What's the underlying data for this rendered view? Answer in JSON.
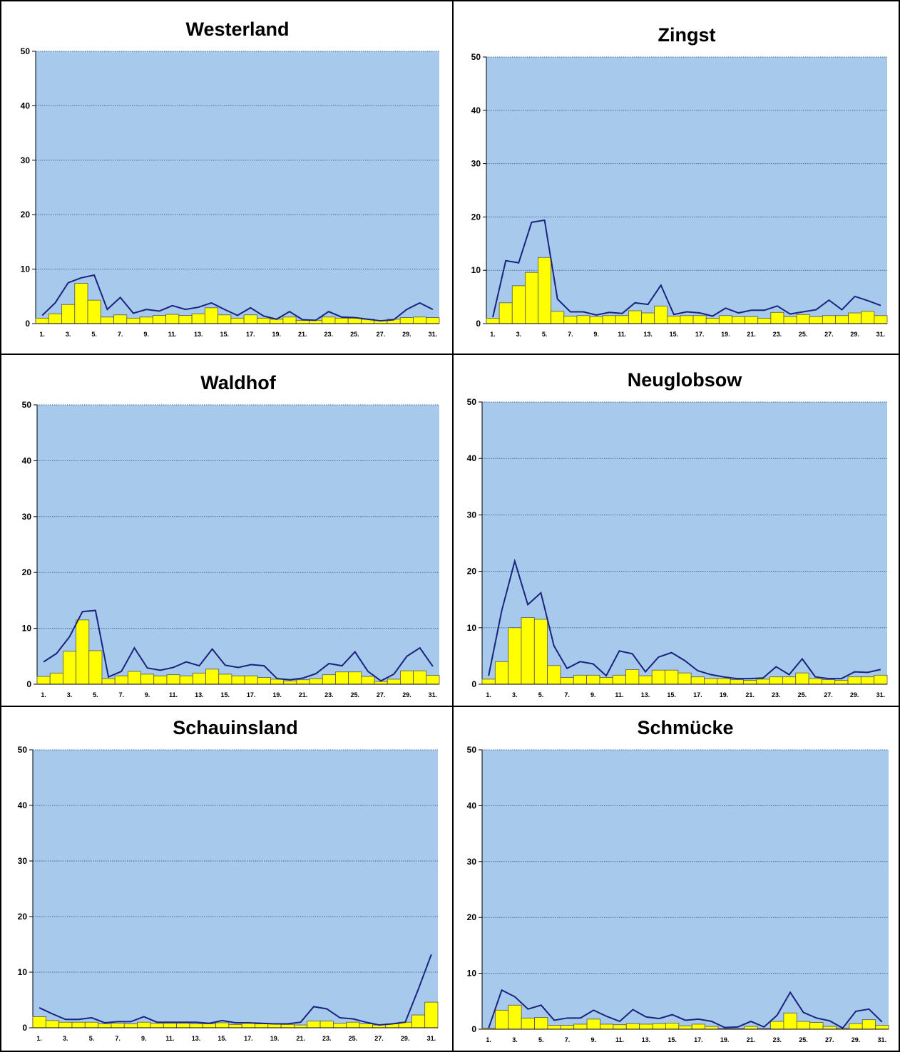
{
  "chart_data": [
    {
      "type": "bar",
      "title": "Westerland",
      "ylim": [
        0,
        50
      ],
      "yticks": [
        "0",
        "10",
        "20",
        "30",
        "40",
        "50"
      ],
      "xticks": [
        "1.",
        "3.",
        "5.",
        "7.",
        "9.",
        "11.",
        "13.",
        "15.",
        "17.",
        "19.",
        "21.",
        "23.",
        "25.",
        "27.",
        "29.",
        "31."
      ],
      "grid": true,
      "series": [
        {
          "kind": "bar",
          "values": [
            1.0,
            1.8,
            3.5,
            7.4,
            4.3,
            1.2,
            1.6,
            1.0,
            1.2,
            1.5,
            1.7,
            1.5,
            1.8,
            2.9,
            1.6,
            1.0,
            1.6,
            1.0,
            0.8,
            1.2,
            0.6,
            0.6,
            1.2,
            1.0,
            1.0,
            0.8,
            0.6,
            0.8,
            1.1,
            1.2,
            1.1
          ]
        },
        {
          "kind": "line",
          "values": [
            1.5,
            3.8,
            7.5,
            8.4,
            8.9,
            2.6,
            4.8,
            1.9,
            2.6,
            2.3,
            3.3,
            2.6,
            3.0,
            3.8,
            2.6,
            1.5,
            2.9,
            1.4,
            0.8,
            2.2,
            0.7,
            0.6,
            2.2,
            1.2,
            1.1,
            0.8,
            0.5,
            0.7,
            2.6,
            3.8,
            2.6
          ]
        }
      ]
    },
    {
      "type": "bar",
      "title": "Zingst",
      "ylim": [
        0,
        50
      ],
      "yticks": [
        "0",
        "10",
        "20",
        "30",
        "40",
        "50"
      ],
      "xticks": [
        "1.",
        "3.",
        "5.",
        "7.",
        "9.",
        "11.",
        "13.",
        "15.",
        "17.",
        "19.",
        "21.",
        "23.",
        "25.",
        "27.",
        "29.",
        "31."
      ],
      "grid": true,
      "series": [
        {
          "kind": "bar",
          "values": [
            1.0,
            3.9,
            7.1,
            9.6,
            12.4,
            2.3,
            1.4,
            1.5,
            1.3,
            1.5,
            1.5,
            2.4,
            2.0,
            3.3,
            1.4,
            1.5,
            1.5,
            1.0,
            1.5,
            1.3,
            1.3,
            1.0,
            2.1,
            1.3,
            1.7,
            1.3,
            1.5,
            1.5,
            2.0,
            2.3,
            1.5
          ]
        },
        {
          "kind": "line",
          "values": [
            1.2,
            11.8,
            11.4,
            19.0,
            19.4,
            4.6,
            2.2,
            2.2,
            1.6,
            2.1,
            1.9,
            3.9,
            3.6,
            7.2,
            1.7,
            2.2,
            2.0,
            1.4,
            2.9,
            2.0,
            2.5,
            2.5,
            3.3,
            1.8,
            2.2,
            2.6,
            4.4,
            2.6,
            5.1,
            4.3,
            3.4
          ]
        }
      ]
    },
    {
      "type": "bar",
      "title": "Waldhof",
      "ylim": [
        0,
        50
      ],
      "yticks": [
        "0",
        "10",
        "20",
        "30",
        "40",
        "50"
      ],
      "xticks": [
        "1.",
        "3.",
        "5.",
        "7.",
        "9.",
        "11.",
        "13.",
        "15.",
        "17.",
        "19.",
        "21.",
        "23.",
        "25.",
        "27.",
        "29.",
        "31."
      ],
      "grid": true,
      "series": [
        {
          "kind": "bar",
          "values": [
            1.4,
            2.0,
            5.9,
            11.5,
            6.0,
            1.0,
            1.5,
            2.3,
            1.8,
            1.5,
            1.7,
            1.5,
            2.0,
            2.7,
            1.8,
            1.5,
            1.5,
            1.2,
            0.9,
            0.6,
            0.8,
            1.0,
            1.7,
            2.2,
            2.2,
            1.4,
            0.5,
            0.9,
            2.4,
            2.4,
            1.6
          ]
        },
        {
          "kind": "line",
          "values": [
            4.0,
            5.5,
            8.5,
            13.0,
            13.2,
            1.3,
            2.3,
            6.5,
            2.9,
            2.5,
            3.0,
            4.0,
            3.3,
            6.3,
            3.4,
            3.0,
            3.5,
            3.3,
            1.0,
            0.8,
            1.1,
            1.9,
            3.7,
            3.3,
            5.8,
            2.3,
            0.6,
            1.8,
            5.0,
            6.5,
            3.2
          ]
        }
      ]
    },
    {
      "type": "bar",
      "title": "Neuglobsow",
      "ylim": [
        0,
        50
      ],
      "yticks": [
        "0",
        "10",
        "20",
        "30",
        "40",
        "50"
      ],
      "xticks": [
        "1.",
        "3.",
        "5.",
        "7.",
        "9.",
        "11.",
        "13.",
        "15.",
        "17.",
        "19.",
        "21.",
        "23.",
        "25.",
        "27.",
        "29.",
        "31."
      ],
      "grid": true,
      "series": [
        {
          "kind": "bar",
          "values": [
            0.9,
            4.0,
            10.0,
            11.8,
            11.5,
            3.3,
            1.2,
            1.6,
            1.6,
            1.2,
            1.6,
            2.6,
            1.5,
            2.5,
            2.5,
            2.0,
            1.3,
            1.0,
            1.0,
            0.8,
            0.7,
            0.9,
            1.3,
            1.3,
            2.0,
            1.0,
            0.8,
            0.7,
            1.3,
            1.3,
            1.6
          ]
        },
        {
          "kind": "line",
          "values": [
            1.5,
            13.0,
            21.8,
            14.1,
            16.2,
            6.8,
            2.8,
            4.0,
            3.6,
            1.5,
            5.9,
            5.4,
            2.2,
            4.8,
            5.6,
            4.2,
            2.4,
            1.7,
            1.3,
            1.0,
            1.0,
            1.1,
            3.1,
            1.7,
            4.5,
            1.3,
            1.0,
            1.0,
            2.2,
            2.1,
            2.6
          ]
        }
      ]
    },
    {
      "type": "bar",
      "title": "Schauinsland",
      "ylim": [
        0,
        50
      ],
      "yticks": [
        "0",
        "10",
        "20",
        "30",
        "40",
        "50"
      ],
      "xticks": [
        "1.",
        "3.",
        "5.",
        "7.",
        "9.",
        "11.",
        "13.",
        "15.",
        "17.",
        "19.",
        "21.",
        "23.",
        "25.",
        "27.",
        "29.",
        "31."
      ],
      "grid": true,
      "series": [
        {
          "kind": "bar",
          "values": [
            2.0,
            1.3,
            1.0,
            1.0,
            1.0,
            0.7,
            0.8,
            0.7,
            1.0,
            0.8,
            0.8,
            0.8,
            0.7,
            0.7,
            0.9,
            0.6,
            0.8,
            0.7,
            0.7,
            0.6,
            0.5,
            1.2,
            1.2,
            0.8,
            1.0,
            0.7,
            0.5,
            0.7,
            1.0,
            2.3,
            4.6
          ]
        },
        {
          "kind": "line",
          "values": [
            3.6,
            2.5,
            1.5,
            1.5,
            1.8,
            0.9,
            1.1,
            1.1,
            2.0,
            1.0,
            1.0,
            1.0,
            1.0,
            0.8,
            1.3,
            0.9,
            0.9,
            0.8,
            0.7,
            0.7,
            1.0,
            3.8,
            3.4,
            1.8,
            1.6,
            1.0,
            0.5,
            0.7,
            1.0,
            6.9,
            13.2
          ]
        }
      ]
    },
    {
      "type": "bar",
      "title": "Schmücke",
      "ylim": [
        0,
        50
      ],
      "yticks": [
        "0",
        "10",
        "20",
        "30",
        "40",
        "50"
      ],
      "xticks": [
        "1.",
        "3.",
        "5.",
        "7.",
        "9.",
        "11.",
        "13.",
        "15.",
        "17.",
        "19.",
        "21.",
        "23.",
        "25.",
        "27.",
        "29.",
        "31."
      ],
      "grid": true,
      "series": [
        {
          "kind": "bar",
          "values": [
            0.2,
            3.4,
            4.3,
            2.0,
            2.1,
            0.7,
            0.7,
            0.9,
            1.8,
            0.9,
            0.8,
            1.0,
            0.9,
            1.0,
            1.1,
            0.6,
            0.9,
            0.5,
            0.1,
            0.1,
            0.5,
            0.1,
            1.4,
            2.9,
            1.4,
            1.2,
            0.5,
            0.2,
            1.0,
            1.7,
            0.7
          ]
        },
        {
          "kind": "line",
          "values": [
            0.2,
            7.0,
            5.8,
            3.6,
            4.3,
            1.6,
            2.0,
            2.0,
            3.4,
            2.3,
            1.4,
            3.5,
            2.2,
            1.9,
            2.6,
            1.6,
            1.8,
            1.4,
            0.3,
            0.4,
            1.4,
            0.4,
            2.5,
            6.6,
            3.0,
            2.0,
            1.5,
            0.2,
            3.2,
            3.6,
            1.3
          ]
        }
      ]
    }
  ]
}
